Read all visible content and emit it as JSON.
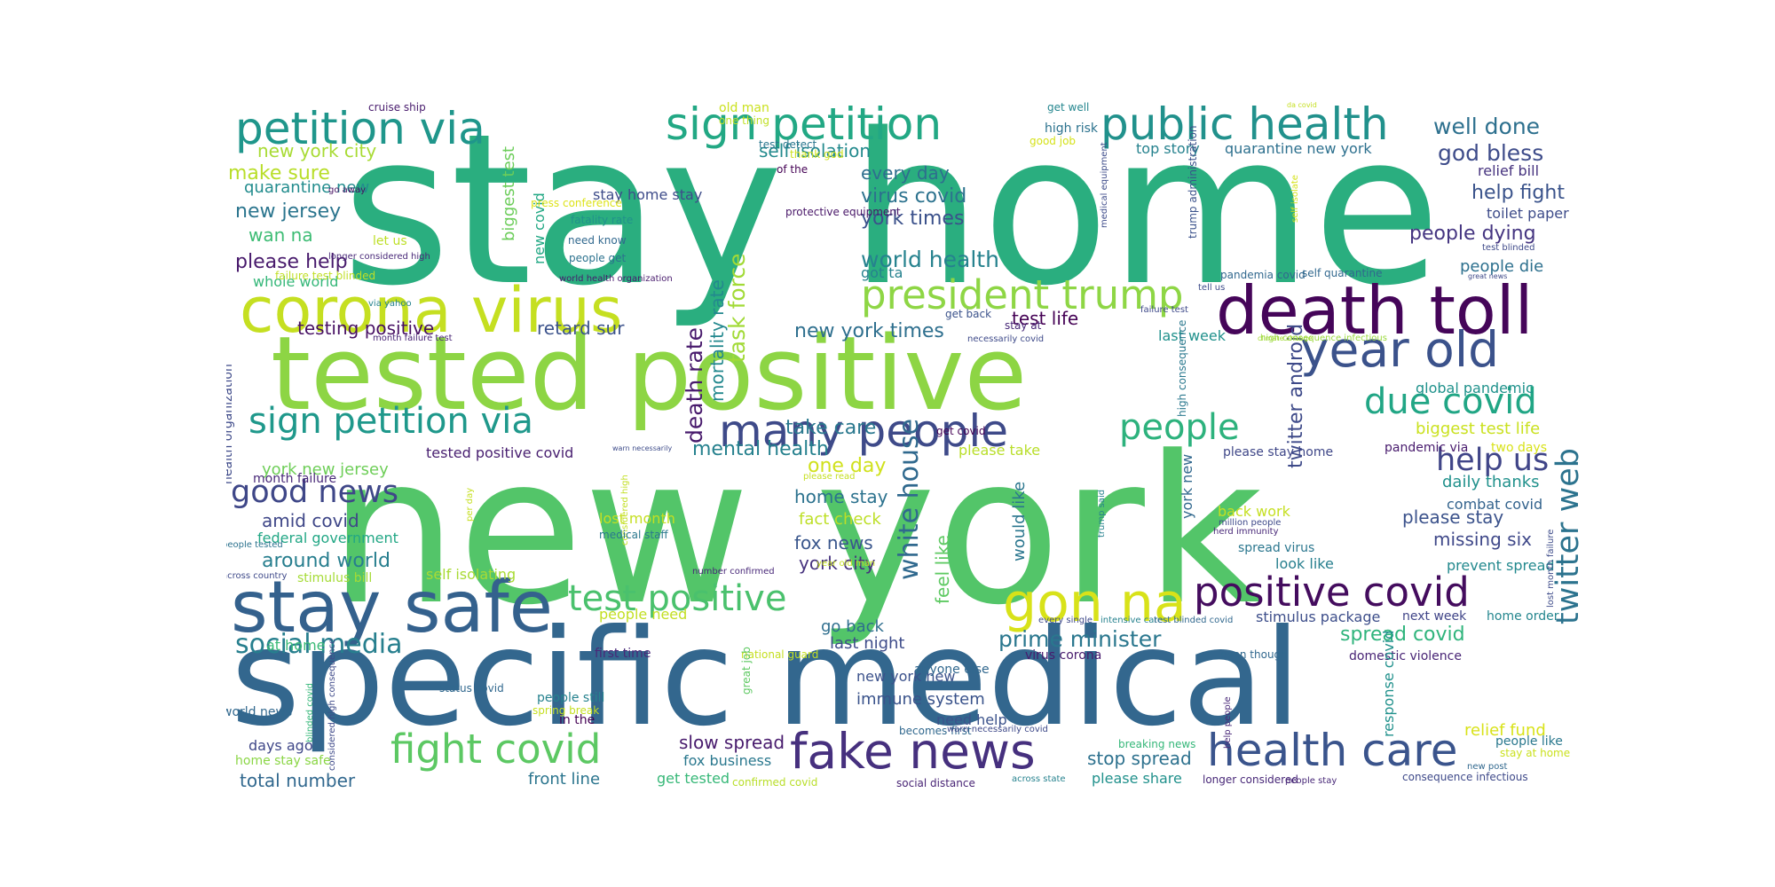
{
  "figure": {
    "title": "",
    "palette": [
      "#440154",
      "#482878",
      "#3e4989",
      "#31688e",
      "#26828e",
      "#1f9e89",
      "#35b779",
      "#6ece58",
      "#b5de2b",
      "#fde725"
    ]
  },
  "words": [
    {
      "text": "stay home",
      "color": "#2aae7f"
    },
    {
      "text": "new york",
      "color": "#53c569"
    },
    {
      "text": "specific medical",
      "color": "#33678e"
    },
    {
      "text": "tested positive",
      "color": "#8dd544"
    },
    {
      "text": "corona virus",
      "color": "#c5df21"
    },
    {
      "text": "death toll",
      "color": "#450559"
    },
    {
      "text": "stay safe",
      "color": "#34618d"
    },
    {
      "text": "public health",
      "color": "#21918c"
    },
    {
      "text": "sign petition",
      "color": "#22a884"
    },
    {
      "text": "petition via",
      "color": "#1f968b"
    },
    {
      "text": "year old",
      "color": "#3b528b"
    },
    {
      "text": "president trump",
      "color": "#8ed645"
    },
    {
      "text": "sign petition via",
      "color": "#1f988b"
    },
    {
      "text": "gon na",
      "color": "#d8e219"
    },
    {
      "text": "positive covid",
      "color": "#440c5e"
    },
    {
      "text": "fake news",
      "color": "#46307e"
    },
    {
      "text": "health care",
      "color": "#3a548c"
    },
    {
      "text": "fight covid",
      "color": "#5cc863"
    },
    {
      "text": "test positive",
      "color": "#4ac16d"
    },
    {
      "text": "many people",
      "color": "#3e4a89"
    },
    {
      "text": "people",
      "color": "#2db27d"
    },
    {
      "text": "due covid",
      "color": "#21a685"
    },
    {
      "text": "white house",
      "color": "#30698e"
    },
    {
      "text": "twitter web",
      "color": "#2c738e"
    },
    {
      "text": "good news",
      "color": "#3f4788"
    },
    {
      "text": "help us",
      "color": "#404588"
    },
    {
      "text": "social media",
      "color": "#277f8e"
    },
    {
      "text": "prime minister",
      "color": "#2a778e"
    },
    {
      "text": "world health",
      "color": "#26828e"
    },
    {
      "text": "well done",
      "color": "#2d708e"
    },
    {
      "text": "god bless",
      "color": "#3e4c8a"
    },
    {
      "text": "help fight",
      "color": "#3a538b"
    },
    {
      "text": "people dying",
      "color": "#453581"
    },
    {
      "text": "people die",
      "color": "#2d708e"
    },
    {
      "text": "twitter android",
      "color": "#3e4a89"
    },
    {
      "text": "new york times",
      "color": "#2e6f8e"
    },
    {
      "text": "test life",
      "color": "#440154"
    },
    {
      "text": "retard sur",
      "color": "#3b528b"
    },
    {
      "text": "task force",
      "color": "#a2da37"
    },
    {
      "text": "death rate",
      "color": "#481a6c"
    },
    {
      "text": "mortality rate",
      "color": "#23888e"
    },
    {
      "text": "mental health",
      "color": "#26818e"
    },
    {
      "text": "take care",
      "color": "#2a788e"
    },
    {
      "text": "one day",
      "color": "#d0e11c"
    },
    {
      "text": "home stay",
      "color": "#2c728e"
    },
    {
      "text": "fact check",
      "color": "#bddf26"
    },
    {
      "text": "fox news",
      "color": "#39568c"
    },
    {
      "text": "york city",
      "color": "#46327e"
    },
    {
      "text": "new york city",
      "color": "#a8db34"
    },
    {
      "text": "make sure",
      "color": "#b8de29"
    },
    {
      "text": "quarantine new",
      "color": "#228c8d"
    },
    {
      "text": "new jersey",
      "color": "#2b758e"
    },
    {
      "text": "wan na",
      "color": "#3dbc74"
    },
    {
      "text": "please help",
      "color": "#481a6c"
    },
    {
      "text": "whole world",
      "color": "#35b779"
    },
    {
      "text": "testing positive",
      "color": "#471063"
    },
    {
      "text": "biggest test",
      "color": "#6ccd5a"
    },
    {
      "text": "new covid",
      "color": "#22a884"
    },
    {
      "text": "self isolation",
      "color": "#238a8d"
    },
    {
      "text": "every day",
      "color": "#2e6e8e"
    },
    {
      "text": "virus covid",
      "color": "#2c728e"
    },
    {
      "text": "york times",
      "color": "#3b518b"
    },
    {
      "text": "stay home stay",
      "color": "#3e4c8a"
    },
    {
      "text": "got ta",
      "color": "#26828e"
    },
    {
      "text": "top story",
      "color": "#26828e"
    },
    {
      "text": "quarantine new york",
      "color": "#2d708e"
    },
    {
      "text": "relief bill",
      "color": "#46337f"
    },
    {
      "text": "toilet paper",
      "color": "#3e4c8a"
    },
    {
      "text": "global pandemic",
      "color": "#20928c"
    },
    {
      "text": "biggest test life",
      "color": "#cae11f"
    },
    {
      "text": "please stay home",
      "color": "#3f4788"
    },
    {
      "text": "last week",
      "color": "#21918c"
    },
    {
      "text": "daily thanks",
      "color": "#21918c"
    },
    {
      "text": "please stay",
      "color": "#3b528b"
    },
    {
      "text": "missing six",
      "color": "#3f4889"
    },
    {
      "text": "combat covid",
      "color": "#33638d"
    },
    {
      "text": "prevent spread",
      "color": "#23898e"
    },
    {
      "text": "look like",
      "color": "#277f8e"
    },
    {
      "text": "spread virus",
      "color": "#2a768e"
    },
    {
      "text": "york new",
      "color": "#31688e"
    },
    {
      "text": "would like",
      "color": "#2a768e"
    },
    {
      "text": "stimulus package",
      "color": "#3d4e8a"
    },
    {
      "text": "next week",
      "color": "#404588"
    },
    {
      "text": "home order",
      "color": "#24868e"
    },
    {
      "text": "spread covid",
      "color": "#2fb47c"
    },
    {
      "text": "domestic violence",
      "color": "#482475"
    },
    {
      "text": "relief fund",
      "color": "#d8e219"
    },
    {
      "text": "people like",
      "color": "#2a788e"
    },
    {
      "text": "stay at home",
      "color": "#cae11f"
    },
    {
      "text": "health organization",
      "color": "#3e4a89"
    },
    {
      "text": "york new jersey",
      "color": "#6ece58"
    },
    {
      "text": "tested positive covid",
      "color": "#481f70"
    },
    {
      "text": "amid covid",
      "color": "#3f4788"
    },
    {
      "text": "federal government",
      "color": "#22a785"
    },
    {
      "text": "around world",
      "color": "#277e8e"
    },
    {
      "text": "stimulus bill",
      "color": "#a5db36"
    },
    {
      "text": "at home",
      "color": "#3aba76"
    },
    {
      "text": "people need",
      "color": "#c2df23"
    },
    {
      "text": "days ago",
      "color": "#3f4788"
    },
    {
      "text": "home stay safe",
      "color": "#8bd646"
    },
    {
      "text": "total number",
      "color": "#31688e"
    },
    {
      "text": "front line",
      "color": "#2b758e"
    },
    {
      "text": "get tested",
      "color": "#37b878"
    },
    {
      "text": "confirmed covid",
      "color": "#b8de29"
    },
    {
      "text": "social distance",
      "color": "#482475"
    },
    {
      "text": "slow spread",
      "color": "#481b6d"
    },
    {
      "text": "fox business",
      "color": "#2a788e"
    },
    {
      "text": "need help",
      "color": "#3b528b"
    },
    {
      "text": "immune system",
      "color": "#3a538b"
    },
    {
      "text": "new york new",
      "color": "#3b518b"
    },
    {
      "text": "go back",
      "color": "#2e6e8e"
    },
    {
      "text": "last night",
      "color": "#3e4c8a"
    },
    {
      "text": "first time",
      "color": "#482878"
    },
    {
      "text": "stop spread",
      "color": "#2d718e"
    },
    {
      "text": "please share",
      "color": "#21918c"
    },
    {
      "text": "breaking news",
      "color": "#35b779"
    },
    {
      "text": "world news",
      "color": "#31688e"
    },
    {
      "text": "people still",
      "color": "#26828e"
    },
    {
      "text": "in the",
      "color": "#440154"
    },
    {
      "text": "cruise ship",
      "color": "#481b6d"
    },
    {
      "text": "old man",
      "color": "#cae11f"
    },
    {
      "text": "one thing",
      "color": "#c0df25"
    },
    {
      "text": "test detect",
      "color": "#2a768e"
    },
    {
      "text": "get well",
      "color": "#24868e"
    },
    {
      "text": "high risk",
      "color": "#2c728e"
    },
    {
      "text": "good job",
      "color": "#d5e21a"
    },
    {
      "text": "thank god",
      "color": "#cde11d"
    },
    {
      "text": "of the",
      "color": "#440154"
    },
    {
      "text": "protective equipment",
      "color": "#481668"
    },
    {
      "text": "go away",
      "color": "#471063"
    },
    {
      "text": "press conference",
      "color": "#dde318"
    },
    {
      "text": "fatality rate",
      "color": "#21918c"
    },
    {
      "text": "need know",
      "color": "#31688e"
    },
    {
      "text": "let us",
      "color": "#bddf26"
    },
    {
      "text": "longer considered high",
      "color": "#482878"
    },
    {
      "text": "people get",
      "color": "#2c728e"
    },
    {
      "text": "failure test blinded",
      "color": "#c0df25"
    },
    {
      "text": "world health organization",
      "color": "#481b6d"
    },
    {
      "text": "via yahoo",
      "color": "#26828e"
    },
    {
      "text": "crisis covid",
      "color": "#b5de2b"
    },
    {
      "text": "month failure test",
      "color": "#482475"
    },
    {
      "text": "get back",
      "color": "#3b528b"
    },
    {
      "text": "stay at",
      "color": "#482878"
    },
    {
      "text": "necessarily covid",
      "color": "#3e4a89"
    },
    {
      "text": "failure test",
      "color": "#3e4989"
    },
    {
      "text": "tell us",
      "color": "#3e4c8a"
    },
    {
      "text": "pandemia covid",
      "color": "#31688e"
    },
    {
      "text": "self quarantine",
      "color": "#31688e"
    },
    {
      "text": "great news",
      "color": "#3e4989"
    },
    {
      "text": "climate change",
      "color": "#a8db34"
    },
    {
      "text": "high consequence infectious",
      "color": "#9ad93c"
    },
    {
      "text": "trump administration",
      "color": "#3b528b"
    },
    {
      "text": "medical equipment",
      "color": "#3e4c8a"
    },
    {
      "text": "high consequence",
      "color": "#2a788e"
    },
    {
      "text": "self isolate",
      "color": "#d5e21a"
    },
    {
      "text": "test blinded",
      "color": "#3e4989"
    },
    {
      "text": "da covid",
      "color": "#c5df21"
    },
    {
      "text": "get covid",
      "color": "#440154"
    },
    {
      "text": "please take",
      "color": "#b8de29"
    },
    {
      "text": "warn necessarily",
      "color": "#3e4c8a"
    },
    {
      "text": "please read",
      "color": "#c5df21"
    },
    {
      "text": "two days",
      "color": "#d8e219"
    },
    {
      "text": "pandemic via",
      "color": "#481b6d"
    },
    {
      "text": "month failure",
      "color": "#482878"
    },
    {
      "text": "considered high",
      "color": "#c2df23"
    },
    {
      "text": "per day",
      "color": "#c5df21"
    },
    {
      "text": "lost month",
      "color": "#c5df21"
    },
    {
      "text": "medical staff",
      "color": "#2a788e"
    },
    {
      "text": "people tested",
      "color": "#2c728e"
    },
    {
      "text": "across country",
      "color": "#3e4989"
    },
    {
      "text": "self isolating",
      "color": "#a8db34"
    },
    {
      "text": "number confirmed",
      "color": "#482878"
    },
    {
      "text": "year old man",
      "color": "#c5df21"
    },
    {
      "text": "back work",
      "color": "#c5df21"
    },
    {
      "text": "million people",
      "color": "#3e4989"
    },
    {
      "text": "herd immunity",
      "color": "#482878"
    },
    {
      "text": "trump said",
      "color": "#26828e"
    },
    {
      "text": "feel like",
      "color": "#5ec962"
    },
    {
      "text": "every single",
      "color": "#3e4989"
    },
    {
      "text": "intensive care",
      "color": "#26828e"
    },
    {
      "text": "test blinded covid",
      "color": "#31688e"
    },
    {
      "text": "even though",
      "color": "#31688e"
    },
    {
      "text": "anyone else",
      "color": "#31688e"
    },
    {
      "text": "virus corona",
      "color": "#481b6d"
    },
    {
      "text": "national guard",
      "color": "#c5df21"
    },
    {
      "text": "great job",
      "color": "#5ec962"
    },
    {
      "text": "status covid",
      "color": "#31688e"
    },
    {
      "text": "spring break",
      "color": "#c5df21"
    },
    {
      "text": "considered high consequence",
      "color": "#3e4989"
    },
    {
      "text": "blinded covid",
      "color": "#35b779"
    },
    {
      "text": "becomes first",
      "color": "#31688e"
    },
    {
      "text": "warn necessarily covid",
      "color": "#3e4989"
    },
    {
      "text": "help people",
      "color": "#482878"
    },
    {
      "text": "response covid",
      "color": "#21918c"
    },
    {
      "text": "longer considered",
      "color": "#482878"
    },
    {
      "text": "people stay",
      "color": "#482878"
    },
    {
      "text": "consequence infectious",
      "color": "#3e4989"
    },
    {
      "text": "across state",
      "color": "#26828e"
    },
    {
      "text": "lost month failure",
      "color": "#3e4c8a"
    },
    {
      "text": "new post",
      "color": "#31688e"
    }
  ]
}
